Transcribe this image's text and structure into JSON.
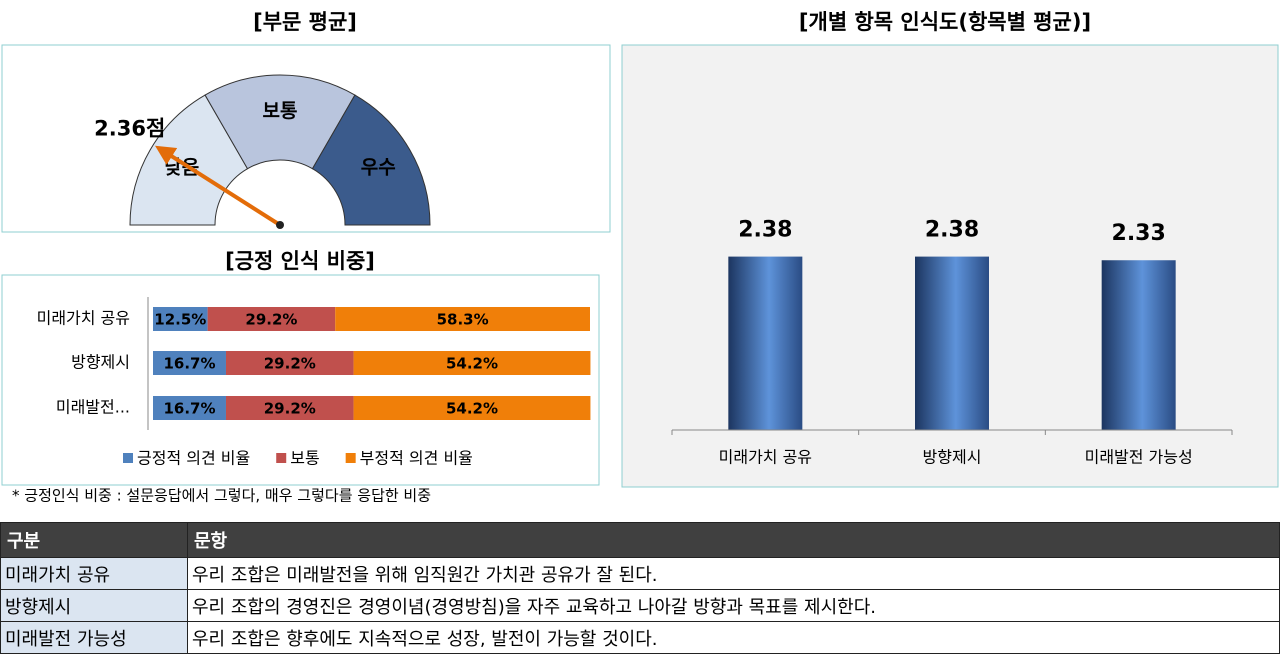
{
  "chart_data": [
    {
      "type": "gauge",
      "title": "[부문 평균]",
      "value": 2.36,
      "value_label": "2.36점",
      "categories": [
        "낮음",
        "보통",
        "우수"
      ],
      "bins": [
        2,
        2.667,
        3.333,
        4
      ],
      "xlim": [
        2,
        4
      ],
      "colors": [
        "#dbe5f1",
        "#b9c5dd",
        "#3b5b8c"
      ],
      "pointer_color": "#e36c09"
    },
    {
      "type": "stacked-bar",
      "orientation": "horizontal",
      "title": "[긍정 인식 비중]",
      "categories": [
        "미래가치 공유",
        "방향제시",
        "미래발전..."
      ],
      "xlim": [
        0,
        100
      ],
      "series": [
        {
          "name": "긍정적 의견 비율",
          "color": "#4f81bd",
          "values": [
            12.5,
            16.7,
            16.7
          ],
          "value_labels": [
            "12.5%",
            "16.7%",
            "16.7%"
          ]
        },
        {
          "name": "보통",
          "color": "#c0504d",
          "values": [
            29.2,
            29.2,
            29.2
          ],
          "value_labels": [
            "29.2%",
            "29.2%",
            "29.2%"
          ]
        },
        {
          "name": "부정적 의견 비율",
          "color": "#f07f09",
          "values": [
            58.3,
            54.2,
            54.2
          ],
          "value_labels": [
            "58.3%",
            "54.2%",
            "54.2%"
          ]
        }
      ],
      "annotation": "* 긍정인식 비중 : 설문응답에서 그렇다, 매우 그렇다를 응답한 비중"
    },
    {
      "type": "bar",
      "title": "[개별 항목 인식도(항목별 평균)]",
      "categories": [
        "미래가치 공유",
        "방향제시",
        "미래발전 가능성"
      ],
      "values": [
        2.38,
        2.38,
        2.33
      ],
      "ylim": [
        0,
        2.8
      ],
      "color": "#3d6cad"
    }
  ],
  "table": {
    "header": [
      "구분",
      "문항"
    ],
    "rows": [
      [
        "미래가치 공유",
        "우리 조합은 미래발전을 위해 임직원간 가치관 공유가 잘 된다."
      ],
      [
        "방향제시",
        "우리 조합의 경영진은 경영이념(경영방침)을 자주 교육하고 나아갈 방향과 목표를 제시한다."
      ],
      [
        "미래발전 가능성",
        "우리 조합은 향후에도 지속적으로 성장, 발전이 가능할 것이다."
      ]
    ]
  }
}
